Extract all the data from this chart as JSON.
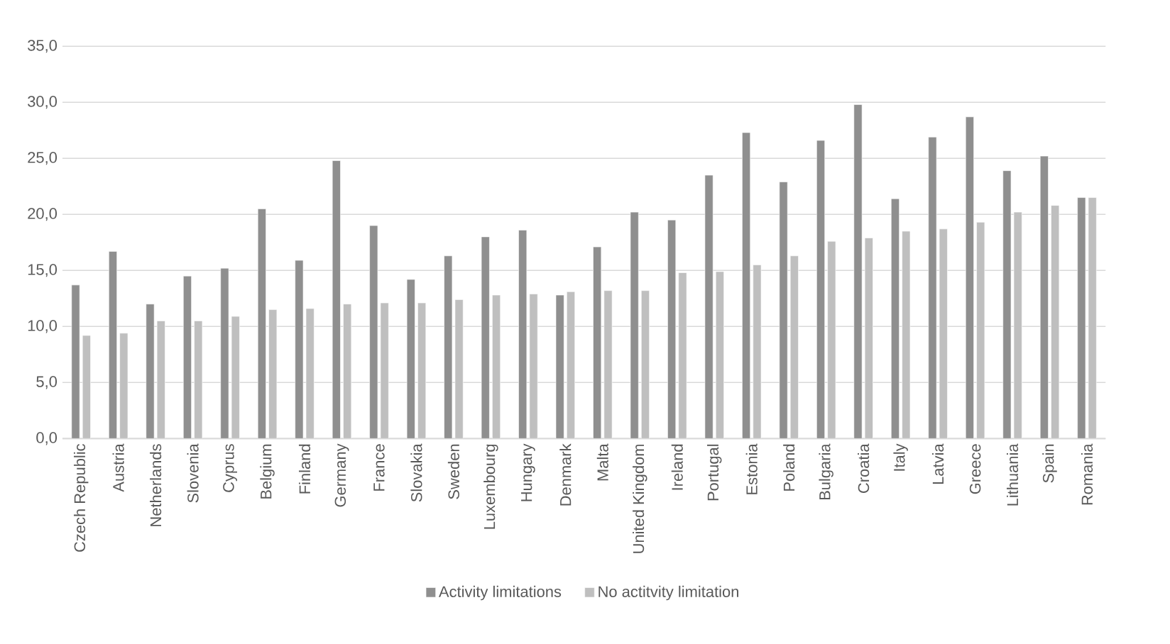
{
  "chart_data": {
    "type": "bar",
    "categories": [
      "Czech Republic",
      "Austria",
      "Netherlands",
      "Slovenia",
      "Cyprus",
      "Belgium",
      "Finland",
      "Germany",
      "France",
      "Slovakia",
      "Sweden",
      "Luxembourg",
      "Hungary",
      "Denmark",
      "Malta",
      "United Kingdom",
      "Ireland",
      "Portugal",
      "Estonia",
      "Poland",
      "Bulgaria",
      "Croatia",
      "Italy",
      "Latvia",
      "Greece",
      "Lithuania",
      "Spain",
      "Romania"
    ],
    "series": [
      {
        "name": "Activity limitations",
        "color": "#8f8f8f",
        "values": [
          13.7,
          16.7,
          12.0,
          14.5,
          15.2,
          20.5,
          15.9,
          24.8,
          19.0,
          14.2,
          16.3,
          18.0,
          18.6,
          12.8,
          17.1,
          20.2,
          19.5,
          23.5,
          27.3,
          22.9,
          26.6,
          29.8,
          21.4,
          26.9,
          28.7,
          23.9,
          25.2,
          21.5
        ]
      },
      {
        "name": "No actitvity limitation",
        "color": "#bfbfbf",
        "values": [
          9.2,
          9.4,
          10.5,
          10.5,
          10.9,
          11.5,
          11.6,
          12.0,
          12.1,
          12.1,
          12.4,
          12.8,
          12.9,
          13.1,
          13.2,
          13.2,
          14.8,
          14.9,
          15.5,
          16.3,
          17.6,
          17.9,
          18.5,
          18.7,
          19.3,
          20.2,
          20.8,
          21.5
        ]
      }
    ],
    "ylim": [
      0,
      35
    ],
    "yticks": [
      {
        "value": 0,
        "label": "0,0"
      },
      {
        "value": 5,
        "label": "5,0"
      },
      {
        "value": 10,
        "label": "10,0"
      },
      {
        "value": 15,
        "label": "15,0"
      },
      {
        "value": 20,
        "label": "20,0"
      },
      {
        "value": 25,
        "label": "25,0"
      },
      {
        "value": 30,
        "label": "30,0"
      },
      {
        "value": 35,
        "label": "35,0"
      }
    ],
    "grid": "y",
    "legend": "bottom"
  }
}
